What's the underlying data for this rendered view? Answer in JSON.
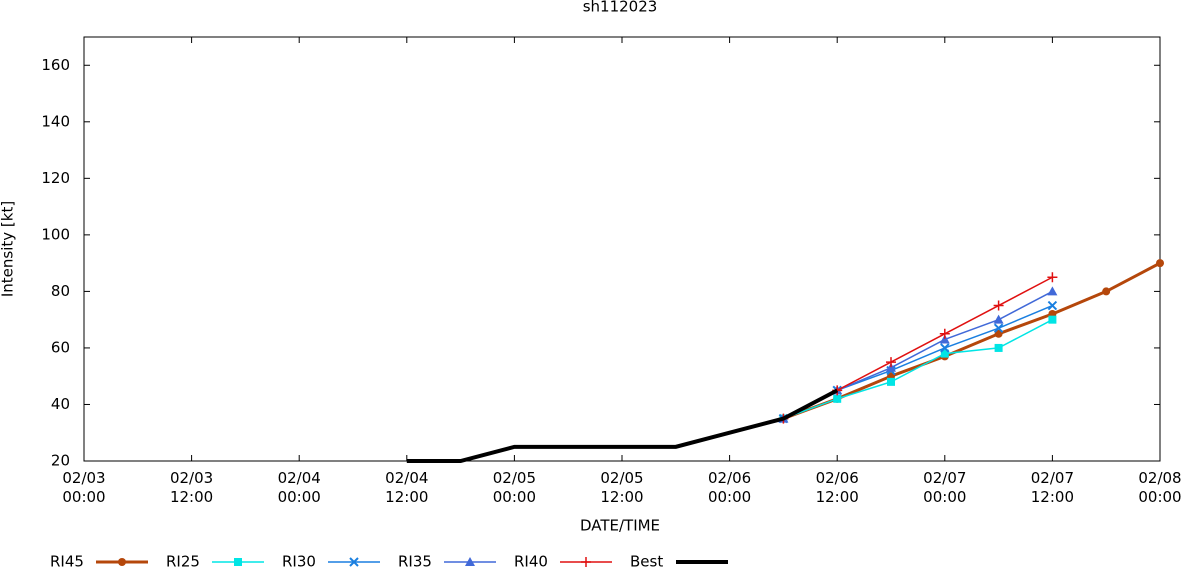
{
  "chart_data": {
    "type": "line",
    "title": "sh112023",
    "x_label": "DATE/TIME",
    "y_label": "Intensity [kt]",
    "xlim": [
      "02/03 00:00",
      "02/08 00:00"
    ],
    "xticks": [
      "02/03 00:00",
      "02/03 12:00",
      "02/04 00:00",
      "02/04 12:00",
      "02/05 00:00",
      "02/05 12:00",
      "02/06 00:00",
      "02/06 12:00",
      "02/07 00:00",
      "02/07 12:00",
      "02/08 00:00"
    ],
    "ylim": [
      20,
      170
    ],
    "yticks": [
      20,
      40,
      60,
      80,
      100,
      120,
      140,
      160
    ],
    "series": [
      {
        "name": "RI45",
        "color": "#b5470b",
        "marker": "circle",
        "width": 3,
        "x": [
          "02/06 06:00",
          "02/06 12:00",
          "02/06 18:00",
          "02/07 00:00",
          "02/07 06:00",
          "02/07 12:00",
          "02/07 18:00",
          "02/08 00:00"
        ],
        "values": [
          35,
          42,
          50,
          57,
          65,
          72,
          80,
          90
        ]
      },
      {
        "name": "RI25",
        "color": "#00e5e5",
        "marker": "square",
        "width": 1.5,
        "x": [
          "02/06 06:00",
          "02/06 12:00",
          "02/06 18:00",
          "02/07 00:00",
          "02/07 06:00",
          "02/07 12:00"
        ],
        "values": [
          35,
          42,
          48,
          58,
          60,
          70
        ]
      },
      {
        "name": "RI30",
        "color": "#1a7fe0",
        "marker": "cross",
        "width": 1.5,
        "x": [
          "02/06 06:00",
          "02/06 12:00",
          "02/06 18:00",
          "02/07 00:00",
          "02/07 06:00",
          "02/07 12:00"
        ],
        "values": [
          35,
          45,
          52,
          60,
          67,
          75
        ]
      },
      {
        "name": "RI35",
        "color": "#4169d8",
        "marker": "triangle",
        "width": 1.5,
        "x": [
          "02/06 06:00",
          "02/06 12:00",
          "02/06 18:00",
          "02/07 00:00",
          "02/07 06:00",
          "02/07 12:00"
        ],
        "values": [
          35,
          45,
          53,
          63,
          70,
          80
        ]
      },
      {
        "name": "RI40",
        "color": "#e01010",
        "marker": "plus",
        "width": 1.5,
        "x": [
          "02/06 06:00",
          "02/06 12:00",
          "02/06 18:00",
          "02/07 00:00",
          "02/07 06:00",
          "02/07 12:00"
        ],
        "values": [
          35,
          45,
          55,
          65,
          75,
          85
        ]
      },
      {
        "name": "Best",
        "color": "#000000",
        "marker": "none",
        "width": 4,
        "x": [
          "02/04 12:00",
          "02/04 18:00",
          "02/05 00:00",
          "02/05 06:00",
          "02/05 12:00",
          "02/05 18:00",
          "02/06 00:00",
          "02/06 06:00",
          "02/06 12:00"
        ],
        "values": [
          20,
          20,
          25,
          25,
          25,
          25,
          30,
          35,
          45
        ]
      }
    ]
  }
}
